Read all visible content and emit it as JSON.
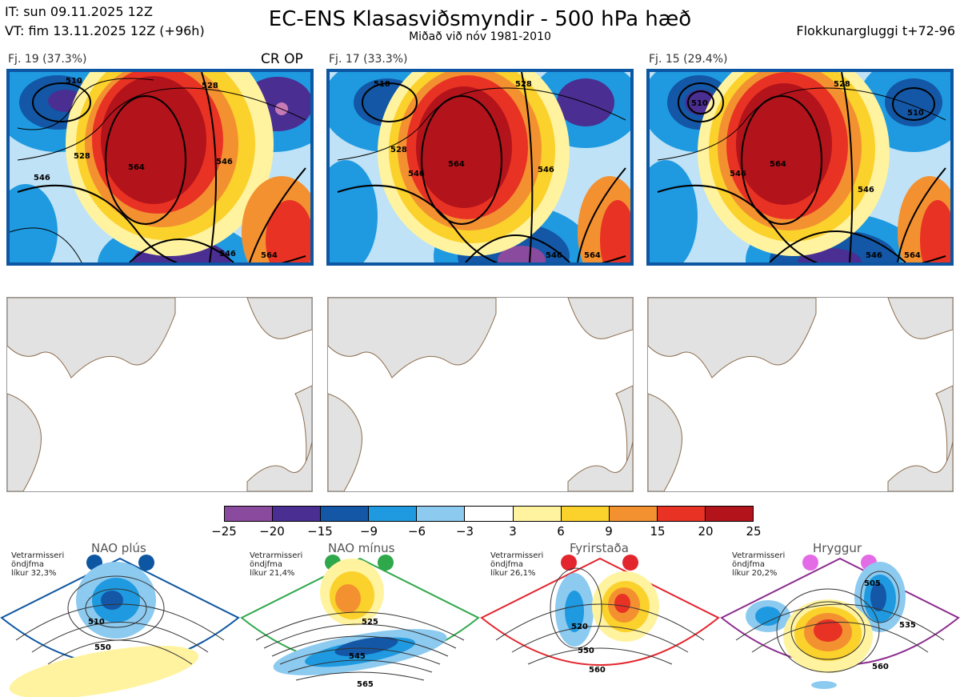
{
  "header": {
    "initial_time": "IT: sun 09.11.2025 12Z",
    "valid_time": "VT: fim 13.11.2025 12Z  (+96h)",
    "title": "EC-ENS Klasasviðsmyndir - 500 hPa hæð",
    "subtitle": "Miðað við nóv 1981-2010",
    "window": "Flokkunargluggi t+72-96"
  },
  "panels": [
    {
      "label": "Fj. 19 (37.3%)",
      "badge": "CR OP",
      "contours": [
        "510",
        "528",
        "546",
        "564",
        "546",
        "528",
        "546",
        "564"
      ]
    },
    {
      "label": "Fj. 17 (33.3%)",
      "badge": "",
      "contours": [
        "510",
        "528",
        "546",
        "564",
        "546",
        "528",
        "546",
        "564"
      ]
    },
    {
      "label": "Fj. 15 (29.4%)",
      "badge": "",
      "contours": [
        "510",
        "528",
        "546",
        "564",
        "546",
        "510",
        "546",
        "564"
      ]
    }
  ],
  "colorbar": {
    "ticks": [
      "−25",
      "−20",
      "−15",
      "−9",
      "−6",
      "−3",
      "3",
      "6",
      "9",
      "15",
      "20",
      "25"
    ],
    "colors": [
      "#8a4a9e",
      "#4a2e91",
      "#1357a6",
      "#1f9ae0",
      "#8ccaf0",
      "#ffffff",
      "#fff3a0",
      "#fbd12c",
      "#f39131",
      "#e83224",
      "#b3131b"
    ]
  },
  "regimes": [
    {
      "name": "NAO plús",
      "season": "Vetrarmisseri",
      "avg": "öndjfma",
      "likelihood": "líkur 32,3%",
      "contours": [
        "510",
        "550"
      ],
      "color": "#0d56a2"
    },
    {
      "name": "NAO mínus",
      "season": "Vetrarmisseri",
      "avg": "öndjfma",
      "likelihood": "líkur 21,4%",
      "contours": [
        "525",
        "545",
        "565"
      ],
      "color": "#2ea84a"
    },
    {
      "name": "Fyrirstaða",
      "season": "Vetrarmisseri",
      "avg": "öndjfma",
      "likelihood": "líkur 26,1%",
      "contours": [
        "520",
        "550",
        "560"
      ],
      "color": "#e3262d"
    },
    {
      "name": "Hryggur",
      "season": "Vetrarmisseri",
      "avg": "öndjfma",
      "likelihood": "líkur 20,2%",
      "contours": [
        "505",
        "535",
        "560"
      ],
      "color": "#8d2c8f"
    }
  ]
}
